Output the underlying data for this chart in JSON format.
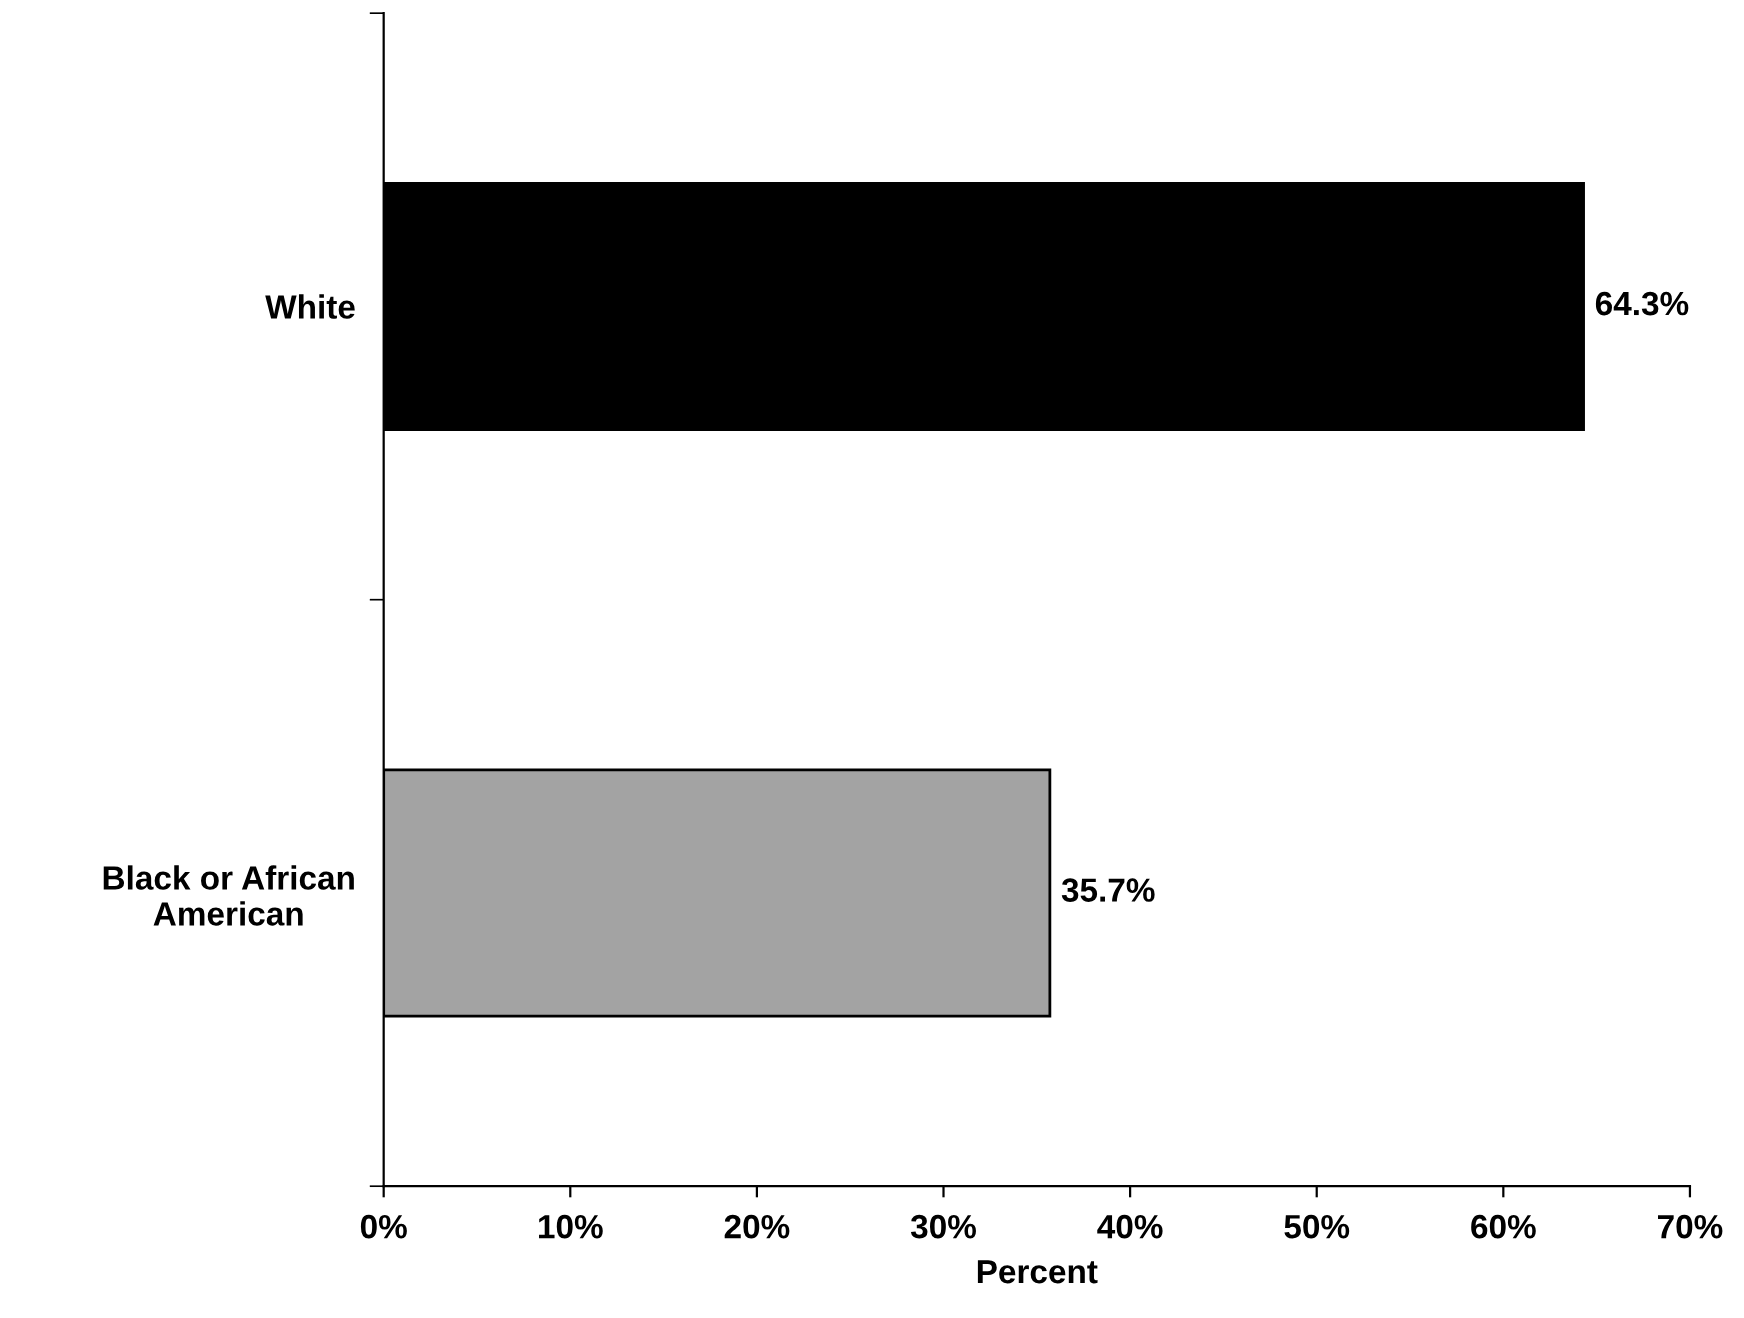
{
  "chart_data": {
    "type": "bar",
    "orientation": "horizontal",
    "categories": [
      "White",
      "Black or African\nAmerican"
    ],
    "values": [
      64.3,
      35.7
    ],
    "colors": [
      "#000000",
      "#a3a3a3"
    ],
    "value_labels": [
      "64.3%",
      "35.7%"
    ],
    "xlabel": "Percent",
    "xlim": [
      0,
      70
    ],
    "xticks": [
      {
        "value": 0,
        "label": "0%"
      },
      {
        "value": 10,
        "label": "10%"
      },
      {
        "value": 20,
        "label": "20%"
      },
      {
        "value": 30,
        "label": "30%"
      },
      {
        "value": 40,
        "label": "40%"
      },
      {
        "value": 50,
        "label": "50%"
      },
      {
        "value": 60,
        "label": "60%"
      },
      {
        "value": 70,
        "label": "70%"
      }
    ]
  }
}
